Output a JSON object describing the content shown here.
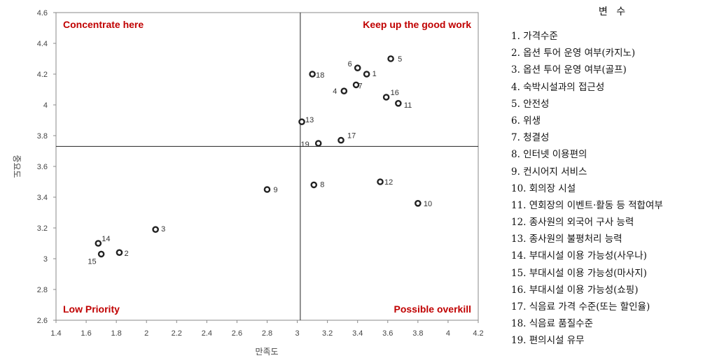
{
  "chart_data": {
    "type": "scatter",
    "xlabel": "만족도",
    "ylabel": "중요도",
    "xlim": [
      1.4,
      4.2
    ],
    "ylim": [
      2.6,
      4.6
    ],
    "xticks": [
      "1.4",
      "1.6",
      "1.8",
      "2",
      "2.2",
      "2.4",
      "2.6",
      "2.8",
      "3",
      "3.2",
      "3.4",
      "3.6",
      "3.8",
      "4",
      "4.2"
    ],
    "yticks": [
      "2.6",
      "2.8",
      "3",
      "3.2",
      "3.4",
      "3.6",
      "3.8",
      "4",
      "4.2",
      "4.4",
      "4.6"
    ],
    "x_mean": 3.02,
    "y_mean": 3.73,
    "grid": false,
    "quadrants": {
      "top_left": "Concentrate here",
      "top_right": "Keep up the good work",
      "bottom_left": "Low Priority",
      "bottom_right": "Possible overkill"
    },
    "points": [
      {
        "label": "1",
        "x": 3.46,
        "y": 4.2
      },
      {
        "label": "2",
        "x": 1.82,
        "y": 3.04
      },
      {
        "label": "3",
        "x": 2.06,
        "y": 3.19
      },
      {
        "label": "4",
        "x": 3.31,
        "y": 4.09
      },
      {
        "label": "5",
        "x": 3.62,
        "y": 4.3
      },
      {
        "label": "6",
        "x": 3.4,
        "y": 4.24
      },
      {
        "label": "7",
        "x": 3.39,
        "y": 4.13
      },
      {
        "label": "8",
        "x": 3.11,
        "y": 3.48
      },
      {
        "label": "9",
        "x": 2.8,
        "y": 3.45
      },
      {
        "label": "10",
        "x": 3.8,
        "y": 3.36
      },
      {
        "label": "11",
        "x": 3.67,
        "y": 4.01
      },
      {
        "label": "12",
        "x": 3.55,
        "y": 3.5
      },
      {
        "label": "13",
        "x": 3.03,
        "y": 3.89
      },
      {
        "label": "14",
        "x": 1.68,
        "y": 3.1
      },
      {
        "label": "15",
        "x": 1.7,
        "y": 3.03
      },
      {
        "label": "16",
        "x": 3.59,
        "y": 4.05
      },
      {
        "label": "17",
        "x": 3.29,
        "y": 3.77
      },
      {
        "label": "18",
        "x": 3.1,
        "y": 4.2
      },
      {
        "label": "19",
        "x": 3.14,
        "y": 3.75
      }
    ]
  },
  "legend": {
    "title": "변 수",
    "items": [
      "1. 가격수준",
      "2. 옵션 투어 운영 여부(카지노)",
      "3. 옵션 투어 운영 여부(골프)",
      "4. 숙박시설과의 접근성",
      "5. 안전성",
      "6. 위생",
      "7. 청결성",
      "8. 인터넷 이용편의",
      "9. 컨시어지 서비스",
      "10. 회의장 시설",
      "11. 연회장의 이벤트·활동 등 적합여부",
      "12. 종사원의 외국어 구사 능력",
      "13. 종사원의 불평처리 능력",
      "14. 부대시설 이용 가능성(사우나)",
      "15. 부대시설 이용 가능성(마사지)",
      "16. 부대시설 이용 가능성(쇼핑)",
      "17. 식음료 가격 수준(또는 할인율)",
      "18. 식음료 품질수준",
      "19. 편의시설 유무"
    ]
  }
}
